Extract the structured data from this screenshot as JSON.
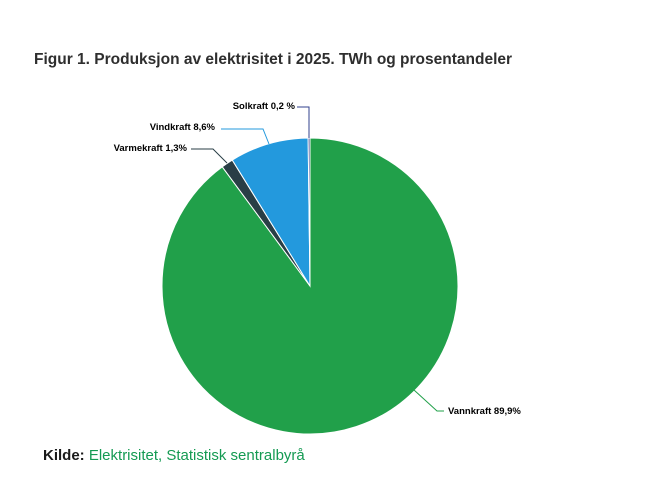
{
  "title": "Figur 1. Produksjon av elektrisitet i 2025. TWh og prosentandeler",
  "source": {
    "prefix": "Kilde:",
    "link": "Elektrisitet, Statistisk sentralbyrå",
    "link_color": "#149a52"
  },
  "chart_data": {
    "type": "pie",
    "title": "Figur 1. Produksjon av elektrisitet i 2025. TWh og prosentandeler",
    "units": "percent",
    "legend": "none",
    "start_angle_deg": 0,
    "direction": "clockwise",
    "slices": [
      {
        "name": "Vannkraft",
        "percent": 89.9,
        "label": "Vannkraft 89,9%",
        "color": "#21a04a"
      },
      {
        "name": "Varmekraft",
        "percent": 1.3,
        "label": "Varmekraft 1,3%",
        "color": "#293e46"
      },
      {
        "name": "Vindkraft",
        "percent": 8.6,
        "label": "Vindkraft 8,6%",
        "color": "#2399dd"
      },
      {
        "name": "Solkraft",
        "percent": 0.2,
        "label": "Solkraft 0,2 %",
        "color": "#32408e"
      }
    ]
  }
}
